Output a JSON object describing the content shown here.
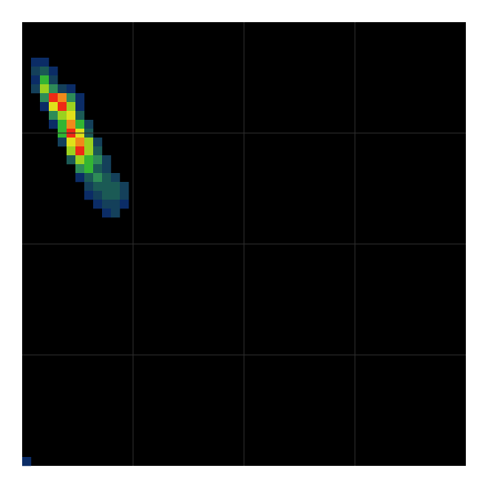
{
  "chart_data": {
    "type": "heatmap",
    "grid": true,
    "background": "#000000",
    "grid_color": "#2a2a2a",
    "nx": 50,
    "ny": 50,
    "divisions": 4,
    "colorscale": [
      "#061a40",
      "#0b2c66",
      "#14405a",
      "#1b5a55",
      "#2e8b57",
      "#33b533",
      "#9bd11f",
      "#e0e01a",
      "#f08a1a",
      "#ee2a15"
    ],
    "cells": [
      [
        1,
        4,
        1
      ],
      [
        2,
        4,
        1
      ],
      [
        1,
        5,
        2
      ],
      [
        2,
        5,
        3
      ],
      [
        3,
        5,
        1
      ],
      [
        1,
        6,
        1
      ],
      [
        2,
        6,
        5
      ],
      [
        3,
        6,
        2
      ],
      [
        1,
        7,
        2
      ],
      [
        2,
        7,
        6
      ],
      [
        3,
        7,
        4
      ],
      [
        4,
        7,
        2
      ],
      [
        5,
        7,
        1
      ],
      [
        2,
        8,
        4
      ],
      [
        3,
        8,
        9
      ],
      [
        4,
        8,
        8
      ],
      [
        5,
        8,
        4
      ],
      [
        6,
        8,
        1
      ],
      [
        2,
        9,
        1
      ],
      [
        3,
        9,
        7
      ],
      [
        4,
        9,
        9
      ],
      [
        5,
        9,
        6
      ],
      [
        6,
        9,
        1
      ],
      [
        3,
        10,
        4
      ],
      [
        4,
        10,
        6
      ],
      [
        5,
        10,
        7
      ],
      [
        6,
        10,
        3
      ],
      [
        3,
        11,
        1
      ],
      [
        4,
        11,
        5
      ],
      [
        5,
        11,
        8
      ],
      [
        6,
        11,
        5
      ],
      [
        7,
        11,
        2
      ],
      [
        4,
        12,
        5
      ],
      [
        5,
        12,
        9
      ],
      [
        6,
        12,
        7
      ],
      [
        7,
        12,
        3
      ],
      [
        4,
        13,
        2
      ],
      [
        5,
        13,
        7
      ],
      [
        6,
        13,
        8
      ],
      [
        7,
        13,
        6
      ],
      [
        8,
        13,
        2
      ],
      [
        5,
        14,
        6
      ],
      [
        6,
        14,
        9
      ],
      [
        7,
        14,
        6
      ],
      [
        8,
        14,
        3
      ],
      [
        5,
        15,
        3
      ],
      [
        6,
        15,
        6
      ],
      [
        7,
        15,
        5
      ],
      [
        8,
        15,
        4
      ],
      [
        9,
        15,
        2
      ],
      [
        6,
        16,
        4
      ],
      [
        7,
        16,
        5
      ],
      [
        8,
        16,
        3
      ],
      [
        9,
        16,
        2
      ],
      [
        6,
        17,
        1
      ],
      [
        7,
        17,
        3
      ],
      [
        8,
        17,
        4
      ],
      [
        9,
        17,
        3
      ],
      [
        10,
        17,
        2
      ],
      [
        7,
        18,
        2
      ],
      [
        8,
        18,
        3
      ],
      [
        9,
        18,
        3
      ],
      [
        10,
        18,
        3
      ],
      [
        11,
        18,
        2
      ],
      [
        7,
        19,
        1
      ],
      [
        8,
        19,
        2
      ],
      [
        9,
        19,
        3
      ],
      [
        10,
        19,
        3
      ],
      [
        11,
        19,
        2
      ],
      [
        8,
        20,
        1
      ],
      [
        9,
        20,
        2
      ],
      [
        10,
        20,
        2
      ],
      [
        11,
        20,
        1
      ],
      [
        9,
        21,
        1
      ],
      [
        10,
        21,
        2
      ],
      [
        0,
        49,
        1
      ]
    ]
  }
}
